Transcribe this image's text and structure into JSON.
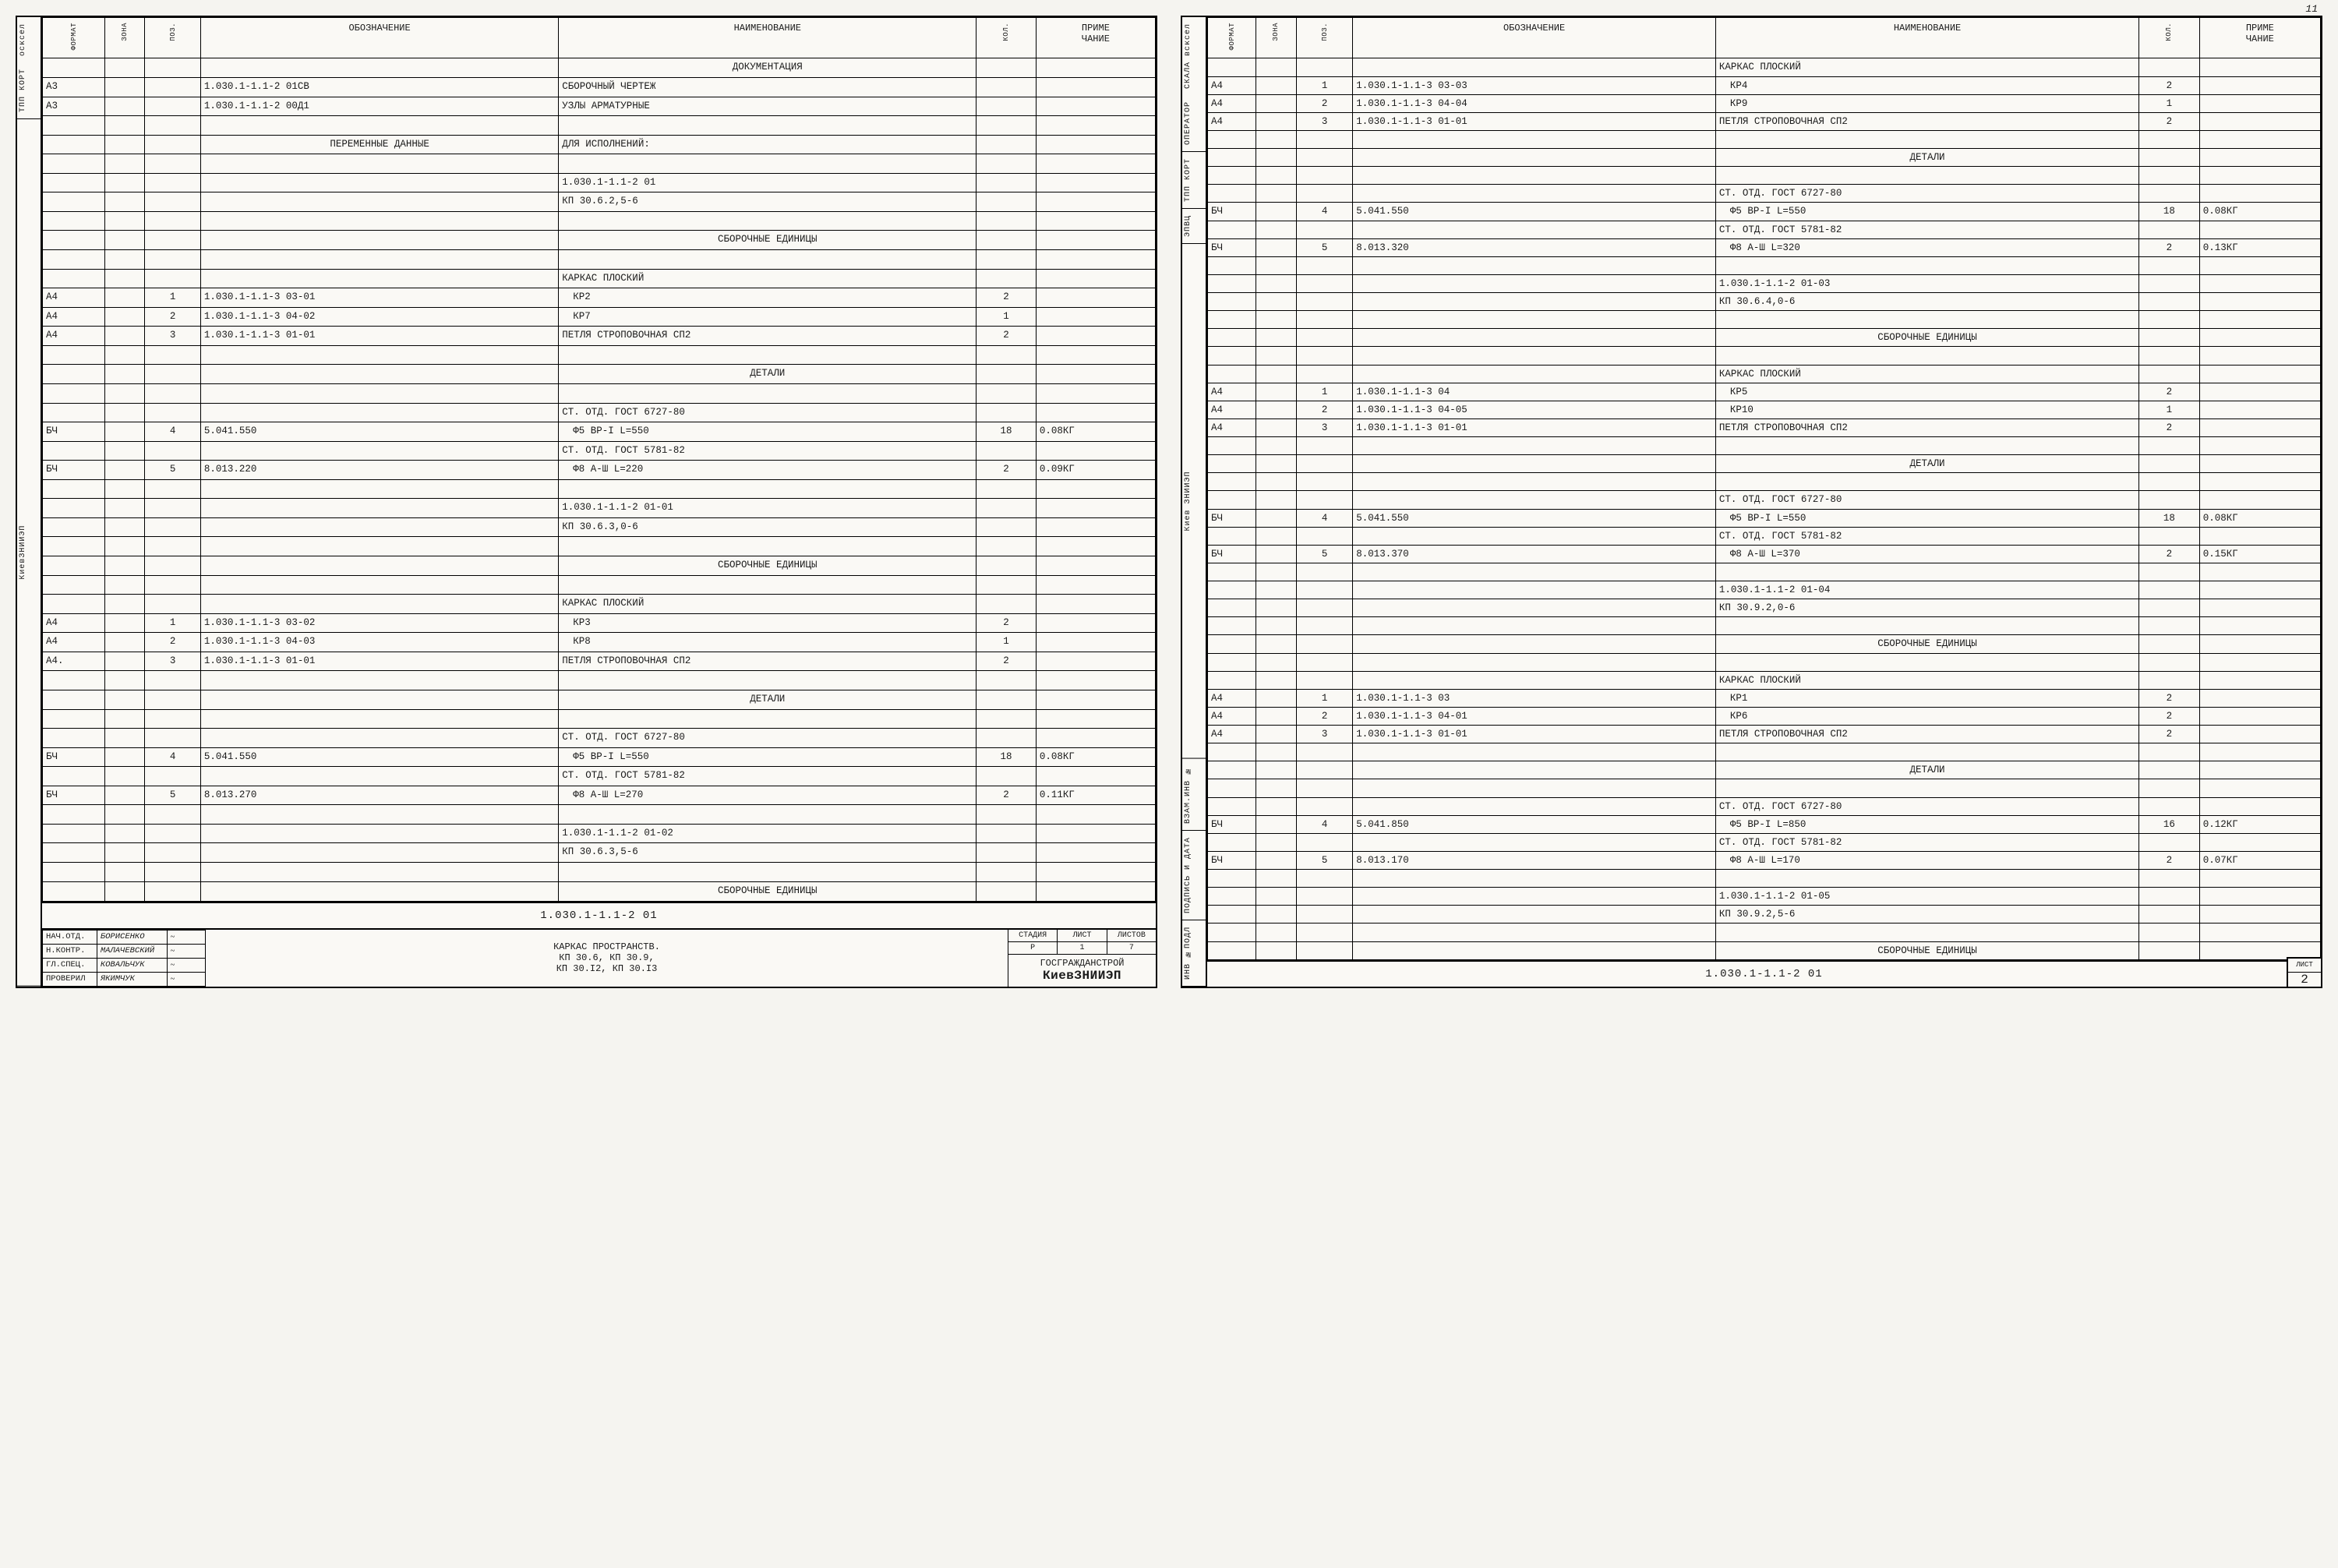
{
  "headers": {
    "format": "ФОРМАТ",
    "zone": "ЗОНА",
    "pos": "ПОЗ.",
    "designation": "ОБОЗНАЧЕНИЕ",
    "name": "НАИМЕНОВАНИЕ",
    "qty": "КОЛ.",
    "note": "ПРИМЕ\nЧАНИЕ"
  },
  "left": {
    "side_tabs": [
      "осксел",
      "ТПП КОРТ",
      "КиевЗНИИЭП"
    ],
    "rows": [
      {
        "name_c": "ДОКУМЕНТАЦИЯ"
      },
      {
        "fmt": "А3",
        "desig": "1.030.1-1.1-2  01СВ",
        "name": "СБОРОЧНЫЙ ЧЕРТЕЖ"
      },
      {
        "fmt": "А3",
        "desig": "1.030.1-1.1-2 00Д1",
        "name": "УЗЛЫ АРМАТУРНЫЕ"
      },
      {
        "blank": true
      },
      {
        "desig_c": "ПЕРЕМЕННЫЕ ДАННЫЕ",
        "name": "ДЛЯ ИСПОЛНЕНИЙ:"
      },
      {
        "blank": true
      },
      {
        "name": "1.030.1-1.1-2  01"
      },
      {
        "name": "КП 30.6.2,5-6"
      },
      {
        "blank": true
      },
      {
        "name_c": "СБОРОЧНЫЕ ЕДИНИЦЫ"
      },
      {
        "blank": true
      },
      {
        "name": "КАРКАС ПЛОСКИЙ"
      },
      {
        "fmt": "А4",
        "pos": "1",
        "desig": "1.030.1-1.1-3  03-01",
        "name_i": "КР2",
        "qty": "2"
      },
      {
        "fmt": "А4",
        "pos": "2",
        "desig": "1.030.1-1.1-3  04-02",
        "name_i": "КР7",
        "qty": "1"
      },
      {
        "fmt": "А4",
        "pos": "3",
        "desig": "1.030.1-1.1-3  01-01",
        "name": "ПЕТЛЯ СТРОПОВОЧНАЯ СП2",
        "qty": "2"
      },
      {
        "blank": true
      },
      {
        "name_c": "ДЕТАЛИ"
      },
      {
        "blank": true
      },
      {
        "name": "СТ. ОТД. ГОСТ 6727-80"
      },
      {
        "fmt": "БЧ",
        "pos": "4",
        "desig": "5.041.550",
        "name_i": "Ф5 ВР-I L=550",
        "qty": "18",
        "note": "0.08КГ"
      },
      {
        "name": "СТ. ОТД. ГОСТ 5781-82"
      },
      {
        "fmt": "БЧ",
        "pos": "5",
        "desig": "8.013.220",
        "name_i": "Ф8 А-Ш L=220",
        "qty": "2",
        "note": "0.09КГ"
      },
      {
        "blank": true
      },
      {
        "name": "1.030.1-1.1-2  01-01"
      },
      {
        "name": "КП 30.6.3,0-6"
      },
      {
        "blank": true
      },
      {
        "name_c": "СБОРОЧНЫЕ ЕДИНИЦЫ"
      },
      {
        "blank": true
      },
      {
        "name": "КАРКАС ПЛОСКИЙ"
      },
      {
        "fmt": "А4",
        "pos": "1",
        "desig": "1.030.1-1.1-3  03-02",
        "name_i": "КР3",
        "qty": "2"
      },
      {
        "fmt": "А4",
        "pos": "2",
        "desig": "1.030.1-1.1-3  04-03",
        "name_i": "КР8",
        "qty": "1"
      },
      {
        "fmt": "А4.",
        "pos": "3",
        "desig": "1.030.1-1.1-3  01-01",
        "name": "ПЕТЛЯ СТРОПОВОЧНАЯ СП2",
        "qty": "2"
      },
      {
        "blank": true
      },
      {
        "name_c": "ДЕТАЛИ"
      },
      {
        "blank": true
      },
      {
        "name": "СТ. ОТД. ГОСТ 6727-80"
      },
      {
        "fmt": "БЧ",
        "pos": "4",
        "desig": "5.041.550",
        "name_i": "Ф5 ВР-I L=550",
        "qty": "18",
        "note": "0.08КГ"
      },
      {
        "name": "СТ. ОТД. ГОСТ 5781-82"
      },
      {
        "fmt": "БЧ",
        "pos": "5",
        "desig": "8.013.270",
        "name_i": "Ф8 А-Ш L=270",
        "qty": "2",
        "note": "0.11КГ"
      },
      {
        "blank": true
      },
      {
        "name": "1.030.1-1.1-2  01-02"
      },
      {
        "name": "КП 30.6.3,5-6"
      },
      {
        "blank": true
      },
      {
        "name_c": "СБОРОЧНЫЕ ЕДИНИЦЫ"
      }
    ],
    "docnum": "1.030.1-1.1-2  01",
    "sigs": [
      {
        "role": "НАЧ.ОТД.",
        "name": "БОРИСЕНКО"
      },
      {
        "role": "Н.КОНТР.",
        "name": "МАЛАЧЕВСКИЙ"
      },
      {
        "role": "ГЛ.СПЕЦ.",
        "name": "КОВАЛЬЧУК"
      },
      {
        "role": "ПРОВЕРИЛ",
        "name": "ЯКИМЧУК"
      }
    ],
    "title": "КАРКАС ПРОСТРАНСТВ.\nКП 30.6, КП 30.9,\nКП 30.I2, КП 30.I3",
    "stage_labels": {
      "stage": "СТАДИЯ",
      "sheet": "ЛИСТ",
      "sheets": "ЛИСТОВ"
    },
    "stage_vals": {
      "stage": "Р",
      "sheet": "1",
      "sheets": "7"
    },
    "org1": "ГОСГРАЖДАНСТРОЙ",
    "org2": "КиевЗНИИЭП"
  },
  "right": {
    "corner": "11",
    "side_tabs": [
      "СКАЛА всксел",
      "ОПЕРАТОР",
      "ТПП КОРТ",
      "ЭПВЦ",
      "Киев ЗНИИЭП",
      "ВЗАМ.ИНВ №",
      "ПОДПИСЬ И ДАТА",
      "ИНВ №ПОДЛ"
    ],
    "rows": [
      {
        "name": "КАРКАС ПЛОСКИЙ"
      },
      {
        "fmt": "А4",
        "pos": "1",
        "desig": "1.030.1-1.1-3  03-03",
        "name_i": "КР4",
        "qty": "2"
      },
      {
        "fmt": "А4",
        "pos": "2",
        "desig": "1.030.1-1.1-3  04-04",
        "name_i": "КР9",
        "qty": "1"
      },
      {
        "fmt": "А4",
        "pos": "3",
        "desig": "1.030.1-1.1-3  01-01",
        "name": "ПЕТЛЯ СТРОПОВОЧНАЯ СП2",
        "qty": "2"
      },
      {
        "blank": true
      },
      {
        "name_c": "ДЕТАЛИ"
      },
      {
        "blank": true
      },
      {
        "name": "СТ. ОТД. ГОСТ 6727-80"
      },
      {
        "fmt": "БЧ",
        "pos": "4",
        "desig": "5.041.550",
        "name_i": "Ф5 ВР-I L=550",
        "qty": "18",
        "note": "0.08КГ"
      },
      {
        "name": "СТ. ОТД. ГОСТ 5781-82"
      },
      {
        "fmt": "БЧ",
        "pos": "5",
        "desig": "8.013.320",
        "name_i": "Ф8 А-Ш L=320",
        "qty": "2",
        "note": "0.13КГ"
      },
      {
        "blank": true
      },
      {
        "name": "1.030.1-1.1-2  01-03"
      },
      {
        "name": "КП 30.6.4,0-6"
      },
      {
        "blank": true
      },
      {
        "name_c": "СБОРОЧНЫЕ ЕДИНИЦЫ"
      },
      {
        "blank": true
      },
      {
        "name": "КАРКАС ПЛОСКИЙ"
      },
      {
        "fmt": "А4",
        "pos": "1",
        "desig": "1.030.1-1.1-3  04",
        "name_i": "КР5",
        "qty": "2"
      },
      {
        "fmt": "А4",
        "pos": "2",
        "desig": "1.030.1-1.1-3  04-05",
        "name_i": "КР10",
        "qty": "1"
      },
      {
        "fmt": "А4",
        "pos": "3",
        "desig": "1.030.1-1.1-3  01-01",
        "name": "ПЕТЛЯ СТРОПОВОЧНАЯ СП2",
        "qty": "2"
      },
      {
        "blank": true
      },
      {
        "name_c": "ДЕТАЛИ"
      },
      {
        "blank": true
      },
      {
        "name": "СТ. ОТД. ГОСТ 6727-80"
      },
      {
        "fmt": "БЧ",
        "pos": "4",
        "desig": "5.041.550",
        "name_i": "Ф5 ВР-I L=550",
        "qty": "18",
        "note": "0.08КГ"
      },
      {
        "name": "СТ. ОТД. ГОСТ 5781-82"
      },
      {
        "fmt": "БЧ",
        "pos": "5",
        "desig": "8.013.370",
        "name_i": "Ф8 А-Ш L=370",
        "qty": "2",
        "note": "0.15КГ"
      },
      {
        "blank": true
      },
      {
        "name": "1.030.1-1.1-2  01-04"
      },
      {
        "name": "КП 30.9.2,0-6"
      },
      {
        "blank": true
      },
      {
        "name_c": "СБОРОЧНЫЕ ЕДИНИЦЫ"
      },
      {
        "blank": true
      },
      {
        "name": "КАРКАС ПЛОСКИЙ"
      },
      {
        "fmt": "А4",
        "pos": "1",
        "desig": "1.030.1-1.1-3  03",
        "name_i": "КР1",
        "qty": "2"
      },
      {
        "fmt": "А4",
        "pos": "2",
        "desig": "1.030.1-1.1-3  04-01",
        "name_i": "КР6",
        "qty": "2"
      },
      {
        "fmt": "А4",
        "pos": "3",
        "desig": "1.030.1-1.1-3  01-01",
        "name": "ПЕТЛЯ СТРОПОВОЧНАЯ СП2",
        "qty": "2"
      },
      {
        "blank": true
      },
      {
        "name_c": "ДЕТАЛИ"
      },
      {
        "blank": true
      },
      {
        "name": "СТ. ОТД. ГОСТ 6727-80"
      },
      {
        "fmt": "БЧ",
        "pos": "4",
        "desig": "5.041.850",
        "name_i": "Ф5 ВР-I L=850",
        "qty": "16",
        "note": "0.12КГ"
      },
      {
        "name": "СТ. ОТД. ГОСТ 5781-82"
      },
      {
        "fmt": "БЧ",
        "pos": "5",
        "desig": "8.013.170",
        "name_i": "Ф8 А-Ш L=170",
        "qty": "2",
        "note": "0.07КГ"
      },
      {
        "blank": true
      },
      {
        "name": "1.030.1-1.1-2  01-05"
      },
      {
        "name": "КП 30.9.2,5-6"
      },
      {
        "blank": true
      },
      {
        "name_c": "СБОРОЧНЫЕ ЕДИНИЦЫ"
      }
    ],
    "docnum": "1.030.1-1.1-2  01",
    "sheet_label": "ЛИСТ",
    "sheet_num": "2"
  }
}
